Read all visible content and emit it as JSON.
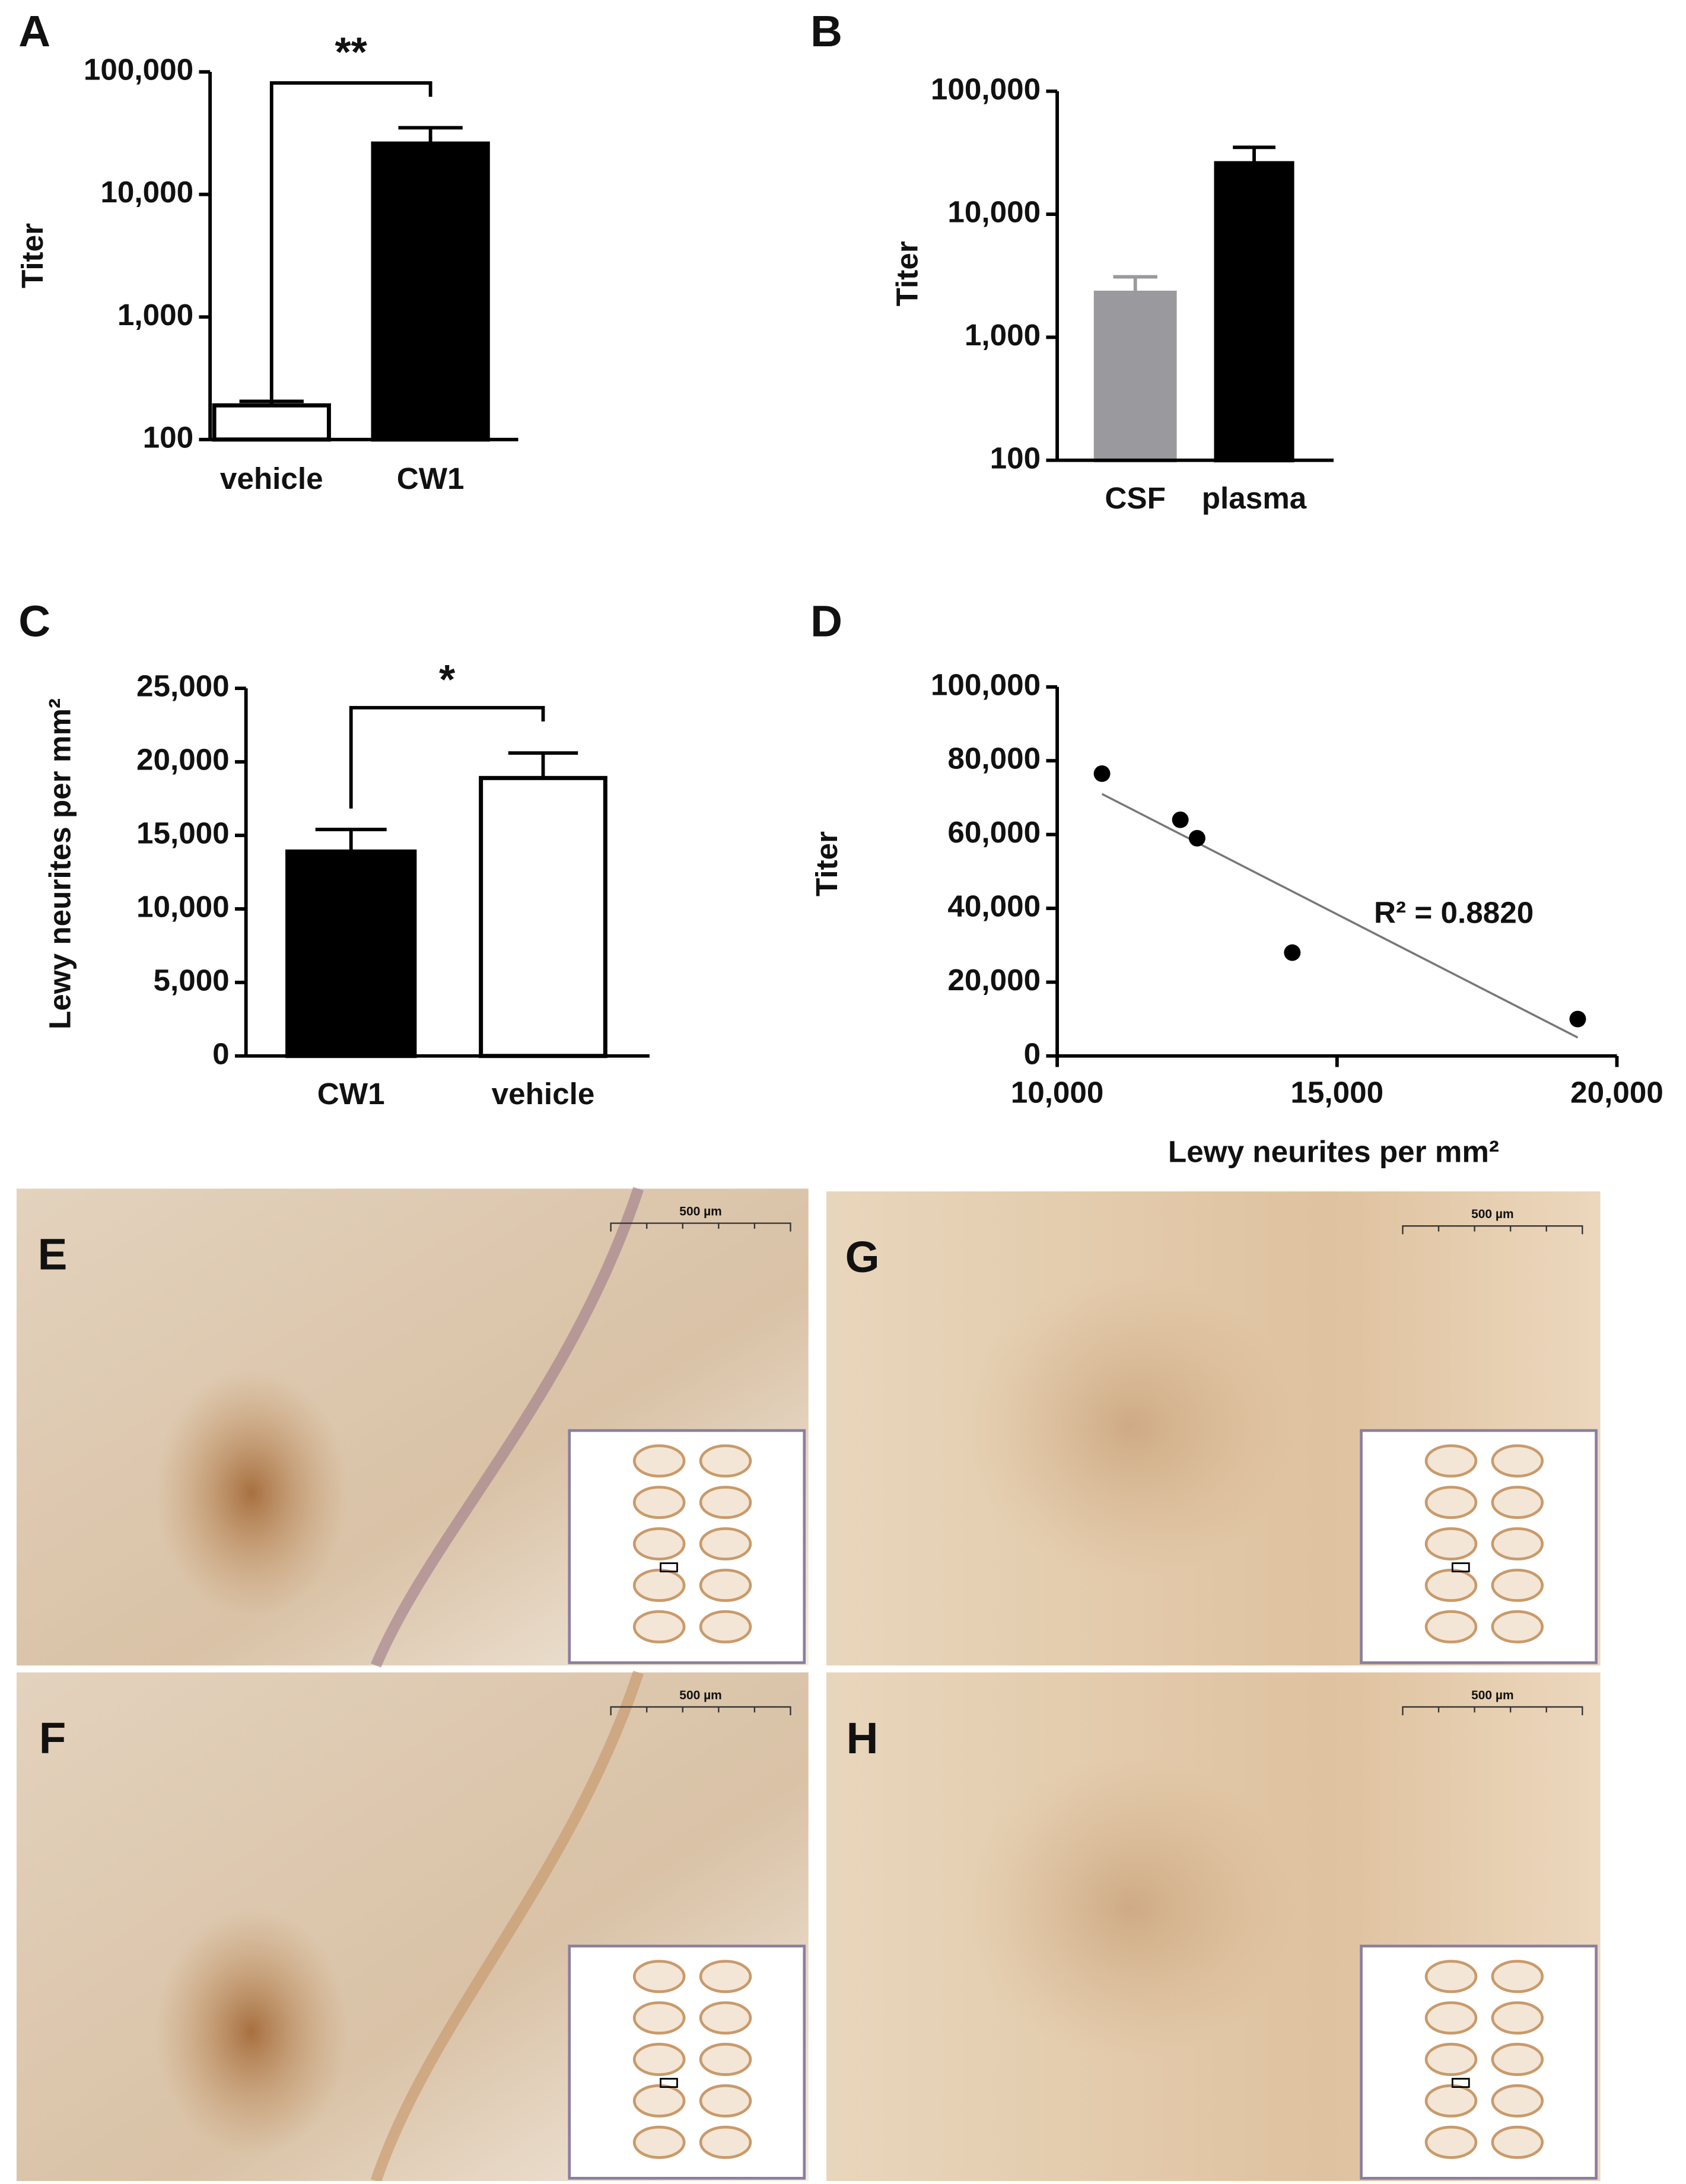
{
  "chart_data": [
    {
      "type": "bar",
      "panel": "A",
      "ylabel": "Titer",
      "categories": [
        "vehicle",
        "CW1"
      ],
      "values": [
        190,
        26000
      ],
      "errors": [
        15,
        9000
      ],
      "colors": [
        "#ffffff",
        "#000000"
      ],
      "log_scale": true,
      "ylim": [
        100,
        100000
      ],
      "yticks": [
        100,
        {
          "value": 1000,
          "label": "1,000"
        },
        {
          "value": 10000,
          "label": "10,000"
        },
        {
          "value": 100000,
          "label": "100,000"
        }
      ],
      "significance": "**"
    },
    {
      "type": "bar",
      "panel": "B",
      "ylabel": "Titer",
      "categories": [
        "CSF",
        "plasma"
      ],
      "values": [
        2300,
        26000
      ],
      "errors": [
        800,
        9000
      ],
      "colors": [
        "#9a9a9e",
        "#000000"
      ],
      "log_scale": true,
      "ylim": [
        100,
        100000
      ],
      "yticks": [
        100,
        {
          "value": 1000,
          "label": "1,000"
        },
        {
          "value": 10000,
          "label": "10,000"
        },
        {
          "value": 100000,
          "label": "100,000"
        }
      ]
    },
    {
      "type": "bar",
      "panel": "C",
      "ylabel": "Lewy neurites per mm²",
      "categories": [
        "CW1",
        "vehicle"
      ],
      "values": [
        13900,
        18900
      ],
      "errors": [
        1500,
        1700
      ],
      "colors": [
        "#000000",
        "#ffffff"
      ],
      "log_scale": false,
      "ylim": [
        0,
        25000
      ],
      "yticks": [
        0,
        {
          "value": 5000,
          "label": "5,000"
        },
        {
          "value": 10000,
          "label": "10,000"
        },
        {
          "value": 15000,
          "label": "15,000"
        },
        {
          "value": 20000,
          "label": "20,000"
        },
        {
          "value": 25000,
          "label": "25,000"
        }
      ],
      "significance": "*"
    },
    {
      "type": "scatter",
      "panel": "D",
      "ylabel": "Titer",
      "xlabel": "Lewy neurites per mm²",
      "x": [
        10800,
        12200,
        12500,
        14200,
        19300
      ],
      "values": [
        76500,
        64000,
        59000,
        28000,
        10000
      ],
      "color": "#000000",
      "trendline": {
        "x": [
          10800,
          19300
        ],
        "y": [
          71000,
          5000
        ]
      },
      "annotation": "R² = 0.8820",
      "xlim": [
        10000,
        20000
      ],
      "xticks": [
        {
          "value": 10000,
          "label": "10,000"
        },
        {
          "value": 15000,
          "label": "15,000"
        },
        {
          "value": 20000,
          "label": "20,000"
        }
      ],
      "ylim": [
        0,
        100000
      ],
      "yticks": [
        0,
        {
          "value": 20000,
          "label": "20,000"
        },
        {
          "value": 40000,
          "label": "40,000"
        },
        {
          "value": 60000,
          "label": "60,000"
        },
        {
          "value": 80000,
          "label": "80,000"
        },
        {
          "value": 100000,
          "label": "100,000"
        }
      ]
    }
  ],
  "image_panels": [
    {
      "label": "E",
      "scale_bar": "500 µm"
    },
    {
      "label": "F",
      "scale_bar": "500 µm"
    },
    {
      "label": "G",
      "scale_bar": "500 µm"
    },
    {
      "label": "H",
      "scale_bar": "500 µm"
    }
  ]
}
